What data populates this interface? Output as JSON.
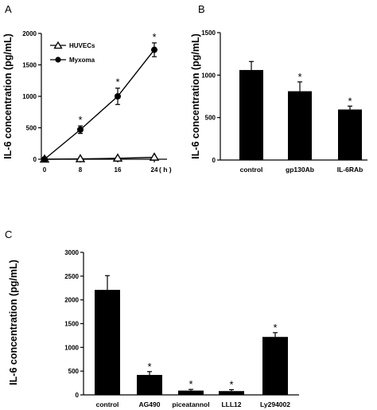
{
  "chart_data": [
    {
      "panel": "A",
      "type": "line",
      "ylabel": "IL-6 concentration (pg/mL)",
      "x_unit": "( h )",
      "x": [
        0,
        8,
        16,
        24
      ],
      "x_ticks": [
        "0",
        "8",
        "16",
        "24"
      ],
      "ylim": [
        0,
        2000
      ],
      "y_ticks": [
        "0",
        "500",
        "1000",
        "1500",
        "2000"
      ],
      "legend_position": "top-left",
      "series": [
        {
          "name": "HUVECs",
          "marker": "triangle-open",
          "values": [
            0,
            5,
            15,
            30
          ],
          "errors": [
            0,
            0,
            0,
            0
          ],
          "significant": [
            false,
            false,
            false,
            false
          ]
        },
        {
          "name": "Myxoma",
          "marker": "circle-filled",
          "values": [
            0,
            470,
            1000,
            1740
          ],
          "errors": [
            0,
            60,
            130,
            110
          ],
          "significant": [
            false,
            true,
            true,
            true
          ]
        }
      ]
    },
    {
      "panel": "B",
      "type": "bar",
      "ylabel": "IL-6 concentration (pg/mL)",
      "categories": [
        "control",
        "gp130Ab",
        "IL-6RAb"
      ],
      "values": [
        1060,
        810,
        595
      ],
      "errors": [
        100,
        110,
        40
      ],
      "significant": [
        false,
        true,
        true
      ],
      "ylim": [
        0,
        1500
      ],
      "y_ticks": [
        "0",
        "500",
        "1000",
        "1500"
      ]
    },
    {
      "panel": "C",
      "type": "bar",
      "ylabel": "IL-6 concentration (pg/mL)",
      "categories": [
        "control",
        "AG490",
        "piceatannol",
        "LLL12",
        "Ly294002"
      ],
      "values": [
        2210,
        420,
        90,
        80,
        1220
      ],
      "errors": [
        300,
        70,
        25,
        30,
        90
      ],
      "significant": [
        false,
        true,
        true,
        true,
        true
      ],
      "ylim": [
        0,
        3000
      ],
      "y_ticks": [
        "0",
        "500",
        "1000",
        "1500",
        "2000",
        "2500",
        "3000"
      ]
    }
  ],
  "significance_marker": "*",
  "colors": {
    "bar": "#000000",
    "axis": "#000000",
    "background": "#ffffff"
  }
}
